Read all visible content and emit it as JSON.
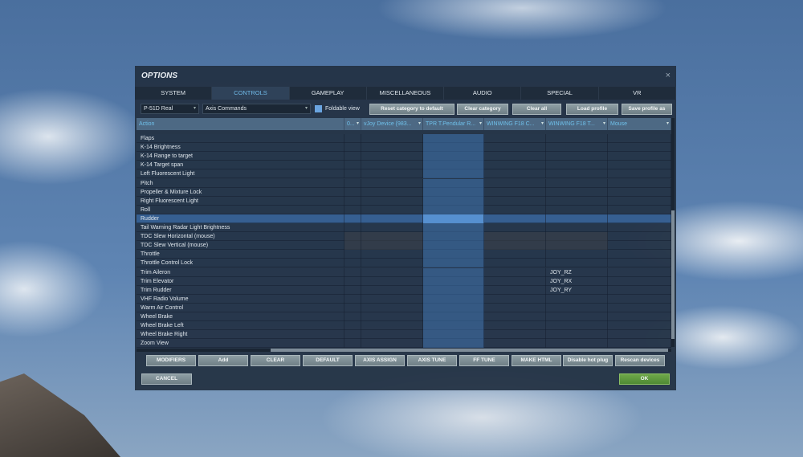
{
  "window": {
    "title": "OPTIONS",
    "close": "×"
  },
  "tabs": [
    "SYSTEM",
    "CONTROLS",
    "GAMEPLAY",
    "MISCELLANEOUS",
    "AUDIO",
    "SPECIAL",
    "VR"
  ],
  "active_tab": "CONTROLS",
  "aircraft_select": "P-51D Real",
  "category_select": "Axis Commands",
  "foldable_view": {
    "label": "Foldable view",
    "checked": true
  },
  "top_buttons": [
    "Reset category to default",
    "Clear category",
    "Clear all",
    "Load profile",
    "Save profile as"
  ],
  "columns": [
    "Action",
    "0...",
    "vJoy Device {983...",
    "TPR T.Pendular R...",
    "WINWING F18 C...",
    "WINWING F18 T...",
    "Mouse"
  ],
  "rows": [
    {
      "action": "Flaps"
    },
    {
      "action": "K-14 Brightness"
    },
    {
      "action": "K-14 Range to target"
    },
    {
      "action": "K-14 Target span"
    },
    {
      "action": "Left Fluorescent Light"
    },
    {
      "action": "Pitch"
    },
    {
      "action": "Propeller & Mixture Lock"
    },
    {
      "action": "Right Fluorescent Light"
    },
    {
      "action": "Roll"
    },
    {
      "action": "Rudder",
      "selected": true
    },
    {
      "action": "Tail Warning Radar Light Brightness"
    },
    {
      "action": "TDC Slew Horizontal (mouse)",
      "disabled": true
    },
    {
      "action": "TDC Slew Vertical (mouse)",
      "disabled": true
    },
    {
      "action": "Throttle"
    },
    {
      "action": "Throttle Control Lock"
    },
    {
      "action": "Trim Aileron",
      "winwing_t": "JOY_RZ"
    },
    {
      "action": "Trim Elevator",
      "winwing_t": "JOY_RX"
    },
    {
      "action": "Trim Rudder",
      "winwing_t": "JOY_RY"
    },
    {
      "action": "VHF Radio Volume"
    },
    {
      "action": "Warm Air Control"
    },
    {
      "action": "Wheel Brake"
    },
    {
      "action": "Wheel Brake Left"
    },
    {
      "action": "Wheel Brake Right"
    },
    {
      "action": "Zoom View"
    }
  ],
  "bottom_buttons": [
    "MODIFIERS",
    "Add",
    "CLEAR",
    "DEFAULT",
    "AXIS ASSIGN",
    "AXIS TUNE",
    "FF TUNE",
    "MAKE HTML",
    "Disable hot plug",
    "Rescan devices"
  ],
  "cancel": "CANCEL",
  "ok": "OK",
  "colors": {
    "accent": "#6fb8e6",
    "ok": "#5a9a3c"
  }
}
